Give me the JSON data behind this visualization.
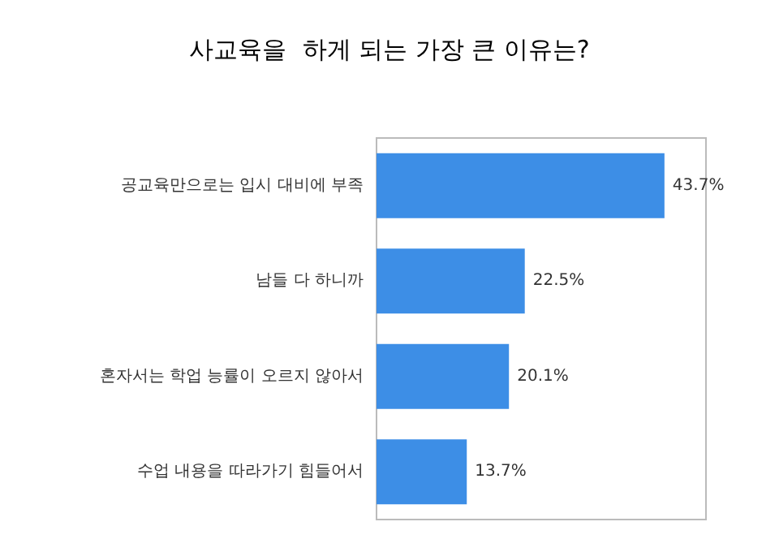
{
  "chart_data": {
    "type": "bar",
    "orientation": "horizontal",
    "title": "사교육을  하게 되는 가장 큰 이유는?",
    "categories": [
      "공교육만으로는 입시 대비에 부족",
      "남들 다 하니까",
      "혼자서는 학업 능률이 오르지 않아서",
      "수업 내용을 따라가기 힘들어서"
    ],
    "values": [
      43.7,
      22.5,
      20.1,
      13.7
    ],
    "value_labels": [
      "43.7%",
      "22.5%",
      "20.1%",
      "13.7%"
    ],
    "color": "#3d8ee6"
  }
}
